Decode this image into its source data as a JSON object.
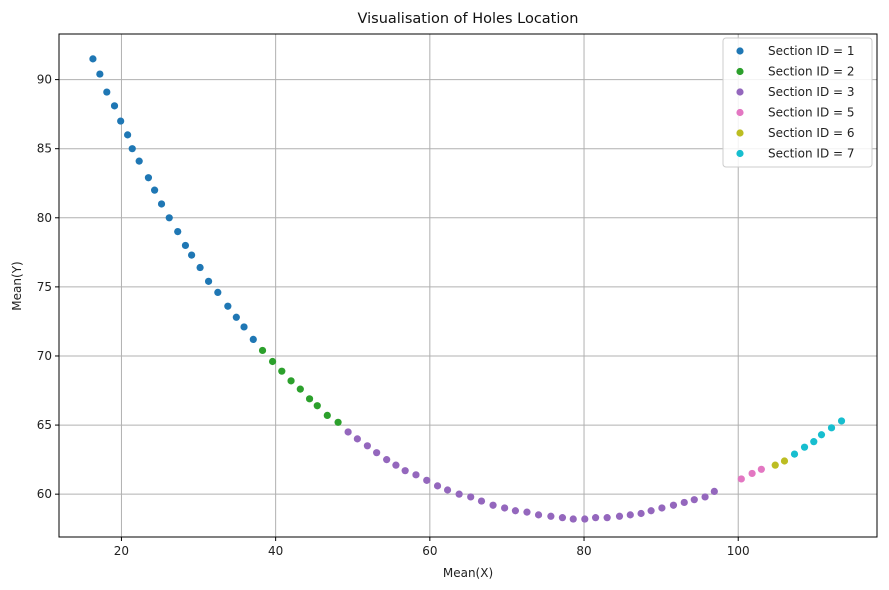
{
  "chart_data": {
    "type": "scatter",
    "title": "Visualisation of Holes Location",
    "xlabel": "Mean(X)",
    "ylabel": "Mean(Y)",
    "xlim": [
      11.9,
      118.0
    ],
    "ylim": [
      56.9,
      93.3
    ],
    "xticks": [
      20,
      40,
      60,
      80,
      100
    ],
    "yticks": [
      60,
      65,
      70,
      75,
      80,
      85,
      90
    ],
    "grid": true,
    "legend_position": "top-right",
    "series": [
      {
        "name": "Section ID = 1",
        "color": "#1f77b4",
        "x": [
          16.3,
          17.2,
          18.1,
          19.1,
          19.9,
          20.8,
          21.4,
          22.3,
          23.5,
          24.3,
          25.2,
          26.2,
          27.3,
          28.3,
          29.1,
          30.2,
          31.3,
          32.5,
          33.8,
          34.9,
          35.9,
          37.1
        ],
        "y": [
          91.5,
          90.4,
          89.1,
          88.1,
          87.0,
          86.0,
          85.0,
          84.1,
          82.9,
          82.0,
          81.0,
          80.0,
          79.0,
          78.0,
          77.3,
          76.4,
          75.4,
          74.6,
          73.6,
          72.8,
          72.1,
          71.2
        ]
      },
      {
        "name": "Section ID = 2",
        "color": "#2ca02c",
        "x": [
          38.3,
          39.6,
          40.8,
          42.0,
          43.2,
          44.4,
          45.4,
          46.7,
          48.1
        ],
        "y": [
          70.4,
          69.6,
          68.9,
          68.2,
          67.6,
          66.9,
          66.4,
          65.7,
          65.2
        ]
      },
      {
        "name": "Section ID = 3",
        "color": "#9467bd",
        "x": [
          49.4,
          50.6,
          51.9,
          53.1,
          54.4,
          55.6,
          56.8,
          58.2,
          59.6,
          61.0,
          62.3,
          63.8,
          65.3,
          66.7,
          68.2,
          69.7,
          71.1,
          72.6,
          74.1,
          75.7,
          77.2,
          78.6,
          80.1,
          81.5,
          83.0,
          84.6,
          86.0,
          87.4,
          88.7,
          90.1,
          91.6,
          93.0,
          94.3,
          95.7,
          96.9
        ],
        "y": [
          64.5,
          64.0,
          63.5,
          63.0,
          62.5,
          62.1,
          61.7,
          61.4,
          61.0,
          60.6,
          60.3,
          60.0,
          59.8,
          59.5,
          59.2,
          59.0,
          58.8,
          58.7,
          58.5,
          58.4,
          58.3,
          58.2,
          58.2,
          58.3,
          58.3,
          58.4,
          58.5,
          58.6,
          58.8,
          59.0,
          59.2,
          59.4,
          59.6,
          59.8,
          60.2
        ]
      },
      {
        "name": "Section ID = 5",
        "color": "#e377c2",
        "x": [
          100.4,
          101.8,
          103.0
        ],
        "y": [
          61.1,
          61.5,
          61.8
        ]
      },
      {
        "name": "Section ID = 6",
        "color": "#bcbd22",
        "x": [
          104.8,
          106.0
        ],
        "y": [
          62.1,
          62.4
        ]
      },
      {
        "name": "Section ID = 7",
        "color": "#17becf",
        "x": [
          107.3,
          108.6,
          109.8,
          110.8,
          112.1,
          113.4
        ],
        "y": [
          62.9,
          63.4,
          63.8,
          64.3,
          64.8,
          65.3
        ]
      }
    ]
  }
}
